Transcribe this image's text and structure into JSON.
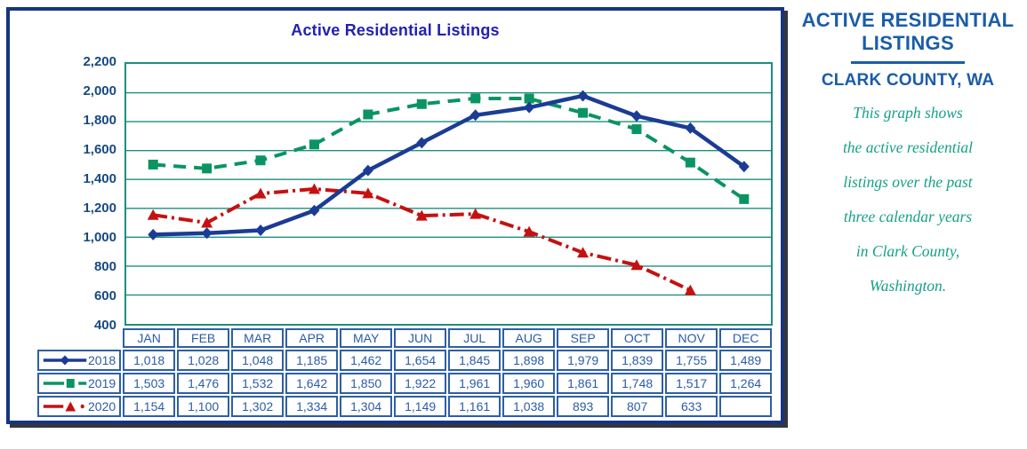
{
  "chart_data": {
    "type": "line",
    "title": "Active Residential Listings",
    "categories": [
      "JAN",
      "FEB",
      "MAR",
      "APR",
      "MAY",
      "JUN",
      "JUL",
      "AUG",
      "SEP",
      "OCT",
      "NOV",
      "DEC"
    ],
    "y_axis": {
      "min": 400,
      "max": 2200,
      "step": 200
    },
    "grid": true,
    "legend_position": "table-left",
    "series": [
      {
        "name": "2018",
        "color": "#1B3C94",
        "marker": "diamond",
        "line_style": "solid",
        "values": [
          1018,
          1028,
          1048,
          1185,
          1462,
          1654,
          1845,
          1898,
          1979,
          1839,
          1755,
          1489
        ]
      },
      {
        "name": "2019",
        "color": "#0A9462",
        "marker": "square",
        "line_style": "dashed",
        "values": [
          1503,
          1476,
          1532,
          1642,
          1850,
          1922,
          1961,
          1960,
          1861,
          1748,
          1517,
          1264
        ]
      },
      {
        "name": "2020",
        "color": "#C51111",
        "marker": "triangle",
        "line_style": "dash-dot",
        "values": [
          1154,
          1100,
          1302,
          1334,
          1304,
          1149,
          1161,
          1038,
          893,
          807,
          633,
          null
        ]
      }
    ],
    "colors": {
      "gridline": "#1E8E7E",
      "axis_labels": "#17497F",
      "table_text": "#2B5CA8",
      "table_border": "#2E5FA6",
      "title": "#2121B1",
      "frame": "#17357F"
    }
  },
  "side_panel": {
    "title": "ACTIVE RESIDENTIAL LISTINGS",
    "subtitle": "CLARK COUNTY, WA",
    "description": "This graph shows the active residential listings over the past three calendar years in Clark County, Washington.",
    "description_lines": [
      "This graph shows",
      "the active residential",
      "listings over the past",
      "three calendar years",
      "in Clark County,",
      "Washington."
    ],
    "title_color": "#1A5CA9",
    "description_color": "#18A089"
  }
}
